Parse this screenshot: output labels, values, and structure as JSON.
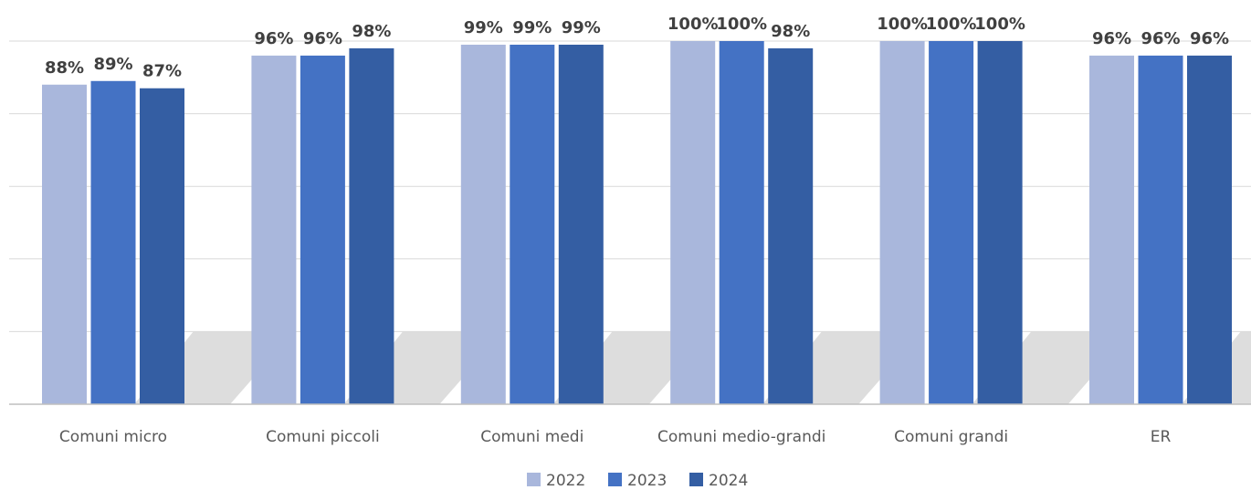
{
  "chart_data": {
    "type": "bar",
    "categories": [
      "Comuni micro",
      "Comuni piccoli",
      "Comuni medi",
      "Comuni medio-grandi",
      "Comuni grandi",
      "ER"
    ],
    "series": [
      {
        "name": "2022",
        "color": "#a9b7dc",
        "values": [
          88,
          96,
          99,
          100,
          100,
          96
        ],
        "labels": [
          "88%",
          "96%",
          "99%",
          "100%",
          "100%",
          "96%"
        ]
      },
      {
        "name": "2023",
        "color": "#4472c4",
        "values": [
          89,
          96,
          99,
          100,
          100,
          96
        ],
        "labels": [
          "89%",
          "96%",
          "99%",
          "100%",
          "100%",
          "96%"
        ]
      },
      {
        "name": "2024",
        "color": "#345ea3",
        "values": [
          87,
          98,
          99,
          98,
          100,
          96
        ],
        "labels": [
          "87%",
          "98%",
          "99%",
          "98%",
          "100%",
          "96%"
        ]
      }
    ],
    "ylim": [
      0,
      100
    ],
    "yticks": [
      0,
      20,
      40,
      60,
      80,
      100
    ],
    "grid": true,
    "legend_position": "bottom"
  }
}
